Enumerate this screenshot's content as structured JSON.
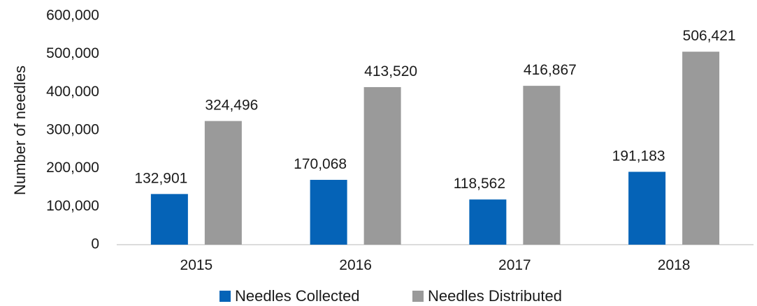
{
  "chart_data": {
    "type": "bar",
    "categories": [
      "2015",
      "2016",
      "2017",
      "2018"
    ],
    "series": [
      {
        "name": "Needles Collected",
        "values": [
          132901,
          170068,
          118562,
          191183
        ],
        "labels": [
          "132,901",
          "170,068",
          "118,562",
          "191,183"
        ],
        "color": "#0563b7"
      },
      {
        "name": "Needles Distributed",
        "values": [
          324496,
          413520,
          416867,
          506421
        ],
        "labels": [
          "324,496",
          "413,520",
          "416,867",
          "506,421"
        ],
        "color": "#9a9a9a"
      }
    ],
    "ylabel": "Number of needles",
    "ylim": [
      0,
      600000
    ],
    "yticks": [
      0,
      100000,
      200000,
      300000,
      400000,
      500000,
      600000
    ],
    "ytick_labels": [
      "0",
      "100,000",
      "200,000",
      "300,000",
      "400,000",
      "500,000",
      "600,000"
    ],
    "grid": false,
    "legend_position": "bottom"
  }
}
